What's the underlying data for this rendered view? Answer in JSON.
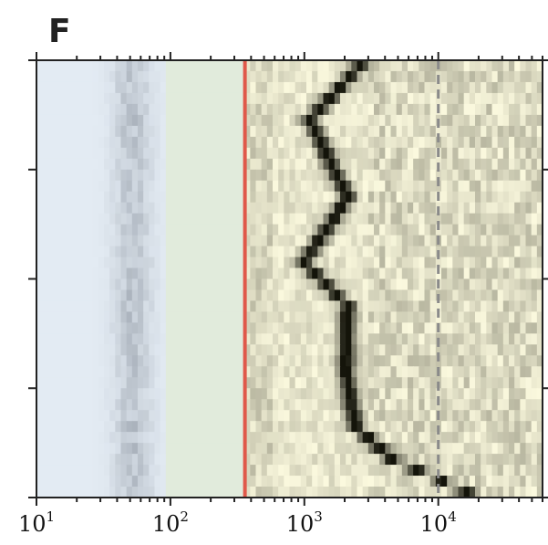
{
  "panel_label": "F",
  "chart_data": {
    "type": "heatmap",
    "title": "",
    "xlabel": "",
    "ylabel": "",
    "x_scale": "log",
    "xlim": [
      10,
      60000
    ],
    "x_ticks": [
      {
        "value": 10,
        "base": "10",
        "exp": "1"
      },
      {
        "value": 100,
        "base": "10",
        "exp": "2"
      },
      {
        "value": 1000,
        "base": "10",
        "exp": "3"
      },
      {
        "value": 10000,
        "base": "10",
        "exp": "4"
      }
    ],
    "y_tick_count": 5,
    "y_tick_labels": [],
    "rows": 40,
    "reference_lines": [
      {
        "x": 360,
        "style": "solid",
        "color": "#e0584a"
      },
      {
        "x": 10000,
        "style": "dashed",
        "color": "#8a8a8a"
      }
    ],
    "regions": [
      {
        "x_from": 10,
        "x_to": 90,
        "color": "#e3ebf3"
      },
      {
        "x_from": 90,
        "x_to": 360,
        "color": "#e1ebdc"
      },
      {
        "x_from": 360,
        "x_to": 60000,
        "color": "#f7f5d8"
      }
    ],
    "ridge_path": [
      {
        "row": 0,
        "x": 2600
      },
      {
        "row": 5,
        "x": 1100
      },
      {
        "row": 12,
        "x": 2100
      },
      {
        "row": 18,
        "x": 1000
      },
      {
        "row": 22,
        "x": 2100
      },
      {
        "row": 28,
        "x": 2050
      },
      {
        "row": 33,
        "x": 2400
      },
      {
        "row": 36,
        "x": 4500
      },
      {
        "row": 39,
        "x": 16000
      }
    ],
    "colors": {
      "low": "#fbf9de",
      "high": "#14140a",
      "cool_shadow": "#5c6470",
      "axis": "#222222"
    }
  }
}
